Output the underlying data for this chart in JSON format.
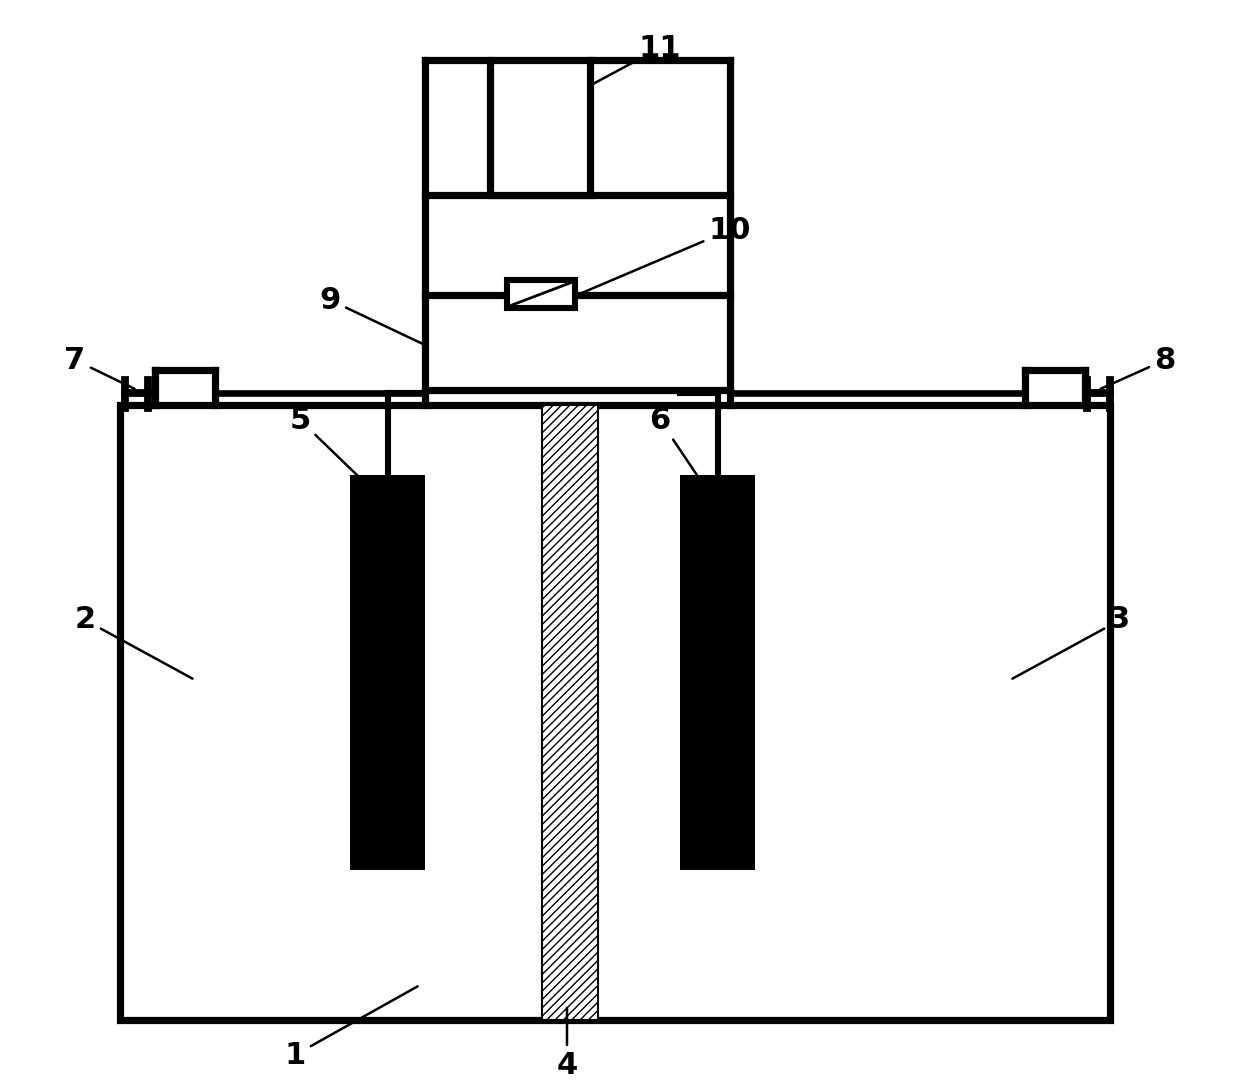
{
  "bg_color": "#ffffff",
  "line_color": "#000000",
  "lw": 4.0,
  "fig_width": 12.4,
  "fig_height": 10.9
}
